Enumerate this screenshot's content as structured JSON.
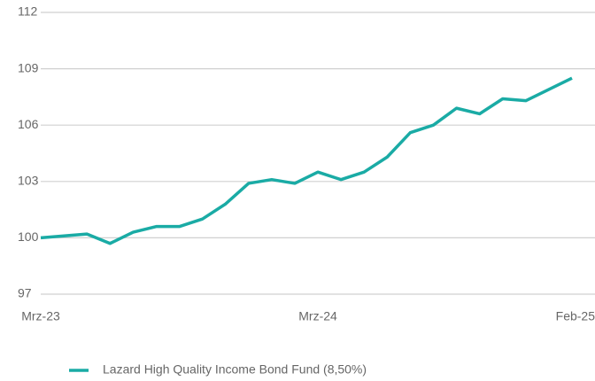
{
  "chart_data": {
    "type": "line",
    "categories": [
      "Mrz-23",
      null,
      null,
      null,
      null,
      null,
      null,
      null,
      null,
      null,
      null,
      null,
      "Mrz-24",
      null,
      null,
      null,
      null,
      null,
      null,
      null,
      null,
      null,
      null,
      "Feb-25"
    ],
    "series": [
      {
        "name": "Lazard High Quality Income Bond Fund (8,50%)",
        "color": "#1aaba5",
        "values": [
          100.0,
          100.1,
          100.2,
          99.7,
          100.3,
          100.6,
          100.6,
          101.0,
          101.8,
          102.9,
          103.1,
          102.9,
          103.5,
          103.1,
          103.5,
          104.3,
          105.6,
          106.0,
          106.9,
          106.6,
          107.4,
          107.3,
          107.9,
          108.5
        ]
      }
    ],
    "ylim": [
      97,
      112
    ],
    "yticks": [
      97,
      100,
      103,
      106,
      109,
      112
    ],
    "grid": true,
    "legend": "bottom"
  }
}
